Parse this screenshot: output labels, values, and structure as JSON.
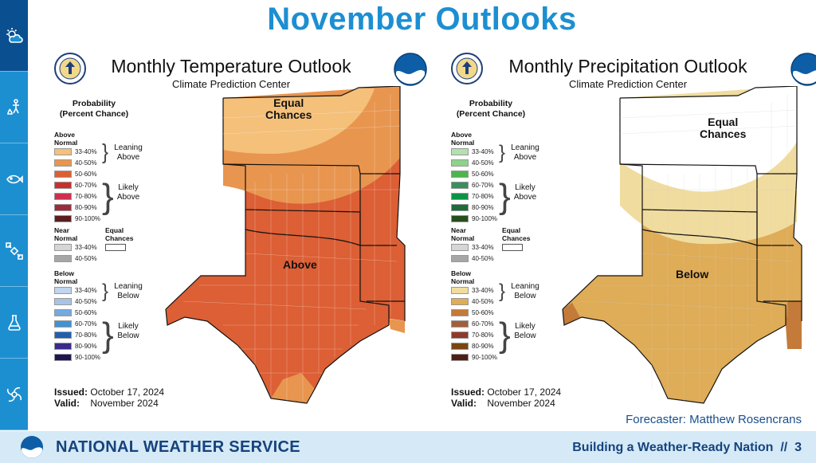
{
  "page_title": "November Outlooks",
  "sidebar": {
    "items": [
      {
        "icon": "weather-icon",
        "active": true
      },
      {
        "icon": "fire-weather-icon",
        "active": false
      },
      {
        "icon": "marine-fish-icon",
        "active": false
      },
      {
        "icon": "satellite-icon",
        "active": false
      },
      {
        "icon": "chemistry-flask-icon",
        "active": false
      },
      {
        "icon": "hurricane-icon",
        "active": false
      }
    ]
  },
  "temperature": {
    "title": "Monthly Temperature Outlook",
    "subtitle": "Climate Prediction Center",
    "legend": {
      "heading": "Probability\n(Percent Chance)",
      "above_label": "Above\nNormal",
      "near_label": "Near\nNormal",
      "below_label": "Below\nNormal",
      "equal_label": "Equal\nChances",
      "leaning_above": "Leaning\nAbove",
      "likely_above": "Likely\nAbove",
      "leaning_below": "Leaning\nBelow",
      "likely_below": "Likely\nBelow",
      "above": [
        {
          "range": "33-40%",
          "color": "#f4c07a"
        },
        {
          "range": "40-50%",
          "color": "#e8954f"
        },
        {
          "range": "50-60%",
          "color": "#dc5f35"
        },
        {
          "range": "60-70%",
          "color": "#c9302c"
        },
        {
          "range": "70-80%",
          "color": "#cf2f4f"
        },
        {
          "range": "80-90%",
          "color": "#9f2b3a"
        },
        {
          "range": "90-100%",
          "color": "#5c1d1d"
        }
      ],
      "near": [
        {
          "range": "33-40%",
          "color": "#d6d6d6"
        },
        {
          "range": "40-50%",
          "color": "#a6a6a6"
        }
      ],
      "below": [
        {
          "range": "33-40%",
          "color": "#c0d5ee"
        },
        {
          "range": "40-50%",
          "color": "#a9c3e6"
        },
        {
          "range": "50-60%",
          "color": "#76a9dd"
        },
        {
          "range": "60-70%",
          "color": "#4590d2"
        },
        {
          "range": "70-80%",
          "color": "#1f5fb0"
        },
        {
          "range": "80-90%",
          "color": "#3a2a8a"
        },
        {
          "range": "90-100%",
          "color": "#1e1553"
        }
      ]
    },
    "map_labels": {
      "equal": "Equal\nChances",
      "main": "Above"
    },
    "issued_label": "Issued:",
    "issued_value": "October 17, 2024",
    "valid_label": "Valid:",
    "valid_value": "November 2024"
  },
  "precipitation": {
    "title": "Monthly Precipitation Outlook",
    "subtitle": "Climate Prediction Center",
    "legend": {
      "heading": "Probability\n(Percent Chance)",
      "above_label": "Above\nNormal",
      "near_label": "Near\nNormal",
      "below_label": "Below\nNormal",
      "equal_label": "Equal\nChances",
      "leaning_above": "Leaning\nAbove",
      "likely_above": "Likely\nAbove",
      "leaning_below": "Leaning\nBelow",
      "likely_below": "Likely\nBelow",
      "above": [
        {
          "range": "33-40%",
          "color": "#b4e0b0"
        },
        {
          "range": "40-50%",
          "color": "#8fd28a"
        },
        {
          "range": "50-60%",
          "color": "#4cb64a"
        },
        {
          "range": "60-70%",
          "color": "#3a8f5d"
        },
        {
          "range": "70-80%",
          "color": "#0d9443"
        },
        {
          "range": "80-90%",
          "color": "#1e6a3a"
        },
        {
          "range": "90-100%",
          "color": "#274d1b"
        }
      ],
      "near": [
        {
          "range": "33-40%",
          "color": "#d6d6d6"
        },
        {
          "range": "40-50%",
          "color": "#a6a6a6"
        }
      ],
      "below": [
        {
          "range": "33-40%",
          "color": "#f0dc9f"
        },
        {
          "range": "40-50%",
          "color": "#dfac57"
        },
        {
          "range": "50-60%",
          "color": "#c47b3a"
        },
        {
          "range": "60-70%",
          "color": "#a35f3a"
        },
        {
          "range": "70-80%",
          "color": "#8f3a2a"
        },
        {
          "range": "80-90%",
          "color": "#7a4510"
        },
        {
          "range": "90-100%",
          "color": "#4c2015"
        }
      ]
    },
    "map_labels": {
      "equal": "Equal\nChances",
      "main": "Below"
    },
    "issued_label": "Issued:",
    "issued_value": "October 17, 2024",
    "valid_label": "Valid:",
    "valid_value": "November 2024"
  },
  "forecaster": "Forecaster: Matthew Rosencrans",
  "footer": {
    "agency": "NATIONAL WEATHER SERVICE",
    "tagline": "Building a Weather-Ready Nation  //  3"
  }
}
